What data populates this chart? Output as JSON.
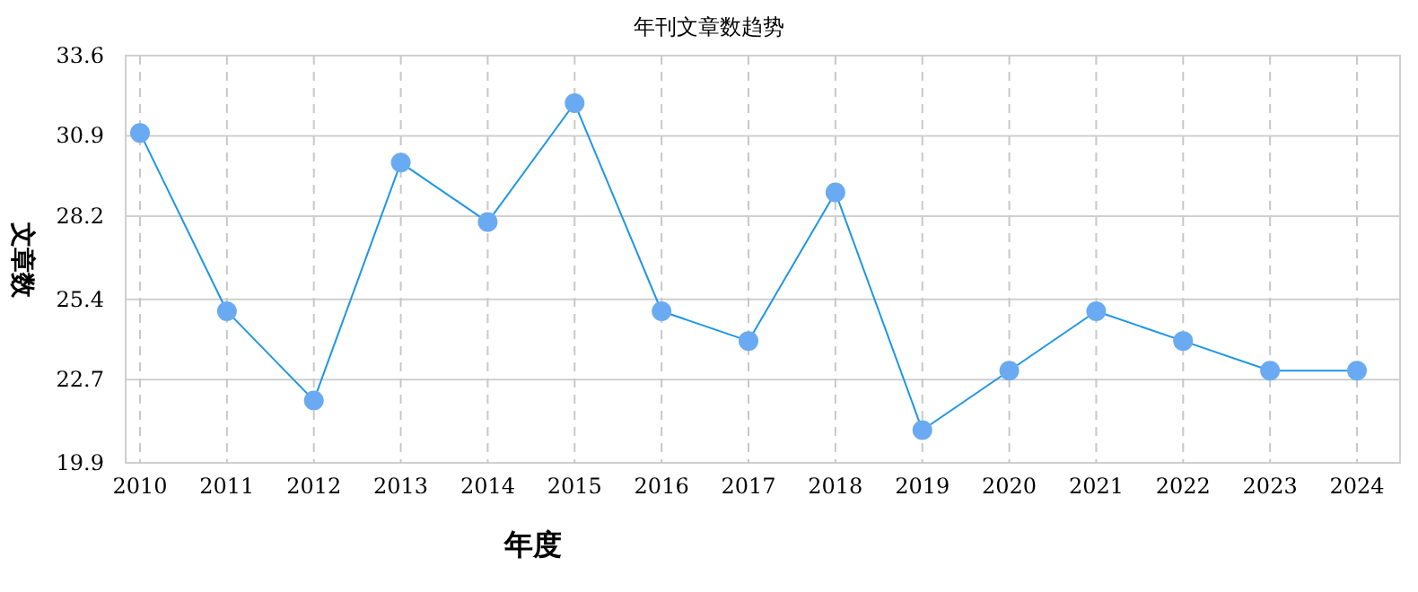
{
  "chart_data": {
    "type": "line",
    "title": "年刊文章数趋势",
    "xlabel": "年度",
    "ylabel": "文章数",
    "categories": [
      "2010",
      "2011",
      "2012",
      "2013",
      "2014",
      "2015",
      "2016",
      "2017",
      "2018",
      "2019",
      "2020",
      "2021",
      "2022",
      "2023",
      "2024"
    ],
    "series": [
      {
        "color": "#1e96e6",
        "values": [
          31,
          25,
          22,
          30,
          28,
          32,
          25,
          24,
          29,
          21,
          23,
          25,
          24,
          23,
          23
        ]
      }
    ],
    "ylim": [
      19.9,
      33.6
    ],
    "yticks": [
      19.9,
      22.7,
      25.4,
      28.2,
      30.9,
      33.6
    ],
    "grid": true,
    "marker": "circle",
    "line_style": "solid"
  }
}
